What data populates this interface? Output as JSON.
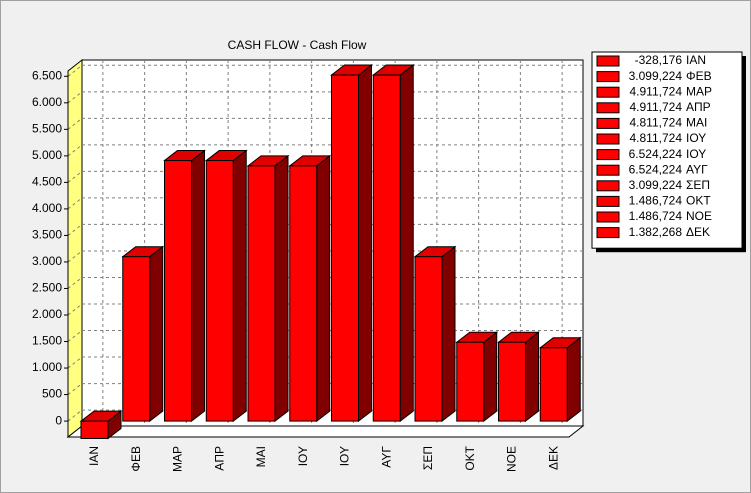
{
  "chart_data": {
    "type": "bar3d",
    "title": "CASH FLOW - Cash Flow",
    "categories": [
      "ΙΑΝ",
      "ΦΕΒ",
      "ΜΑΡ",
      "ΑΠΡ",
      "ΜΑΙ",
      "ΙΟΥ",
      "ΙΟΥ",
      "ΑΥΓ",
      "ΣΕΠ",
      "ΟΚΤ",
      "ΝΟΕ",
      "ΔΕΚ"
    ],
    "values": [
      -328.176,
      3099.224,
      4911.724,
      4911.724,
      4811.724,
      4811.724,
      6524.224,
      6524.224,
      3099.224,
      1486.724,
      1486.724,
      1382.268
    ],
    "value_labels": [
      "-328,176",
      "3.099,224",
      "4.911,724",
      "4.911,724",
      "4.811,724",
      "4.811,724",
      "6.524,224",
      "6.524,224",
      "3.099,224",
      "1.486,724",
      "1.486,724",
      "1.382,268"
    ],
    "color": "#ff0000",
    "ylim": [
      -300,
      6600
    ],
    "yticks": [
      0,
      500,
      {
        "value": 1000,
        "label": "1.000"
      },
      {
        "value": 1500,
        "label": "1.500"
      },
      {
        "value": 2000,
        "label": "2.000"
      },
      {
        "value": 2500,
        "label": "2.500"
      },
      {
        "value": 3000,
        "label": "3.000"
      },
      {
        "value": 3500,
        "label": "3.500"
      },
      {
        "value": 4000,
        "label": "4.000"
      },
      {
        "value": 4500,
        "label": "4.500"
      },
      {
        "value": 5000,
        "label": "5.000"
      },
      {
        "value": 5500,
        "label": "5.500"
      },
      {
        "value": 6000,
        "label": "6.000"
      },
      {
        "value": 6500,
        "label": "6.500"
      }
    ],
    "grid": true,
    "legend": "right"
  }
}
